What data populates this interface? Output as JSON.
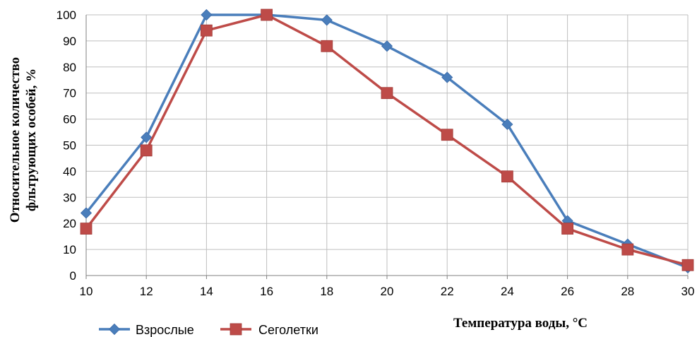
{
  "chart_data": {
    "type": "line",
    "xlabel": "Температура воды, °C",
    "ylabel_lines": [
      "Относительное количество",
      "фльтрующих  особей, %"
    ],
    "x": [
      10,
      12,
      14,
      16,
      18,
      20,
      22,
      24,
      26,
      28,
      30
    ],
    "xlim": [
      10,
      30
    ],
    "ylim": [
      0,
      100
    ],
    "y_ticks": [
      0,
      10,
      20,
      30,
      40,
      50,
      60,
      70,
      80,
      90,
      100
    ],
    "grid": true,
    "legend_position": "bottom-left",
    "series": [
      {
        "name": "Взрослые",
        "color": "#4a7ebb",
        "marker": "diamond",
        "values": [
          24,
          53,
          100,
          100,
          98,
          88,
          76,
          58,
          21,
          12,
          3
        ]
      },
      {
        "name": "Сеголетки",
        "color": "#be4b48",
        "marker": "square",
        "values": [
          18,
          48,
          94,
          100,
          88,
          70,
          54,
          38,
          18,
          10,
          4
        ]
      }
    ]
  }
}
